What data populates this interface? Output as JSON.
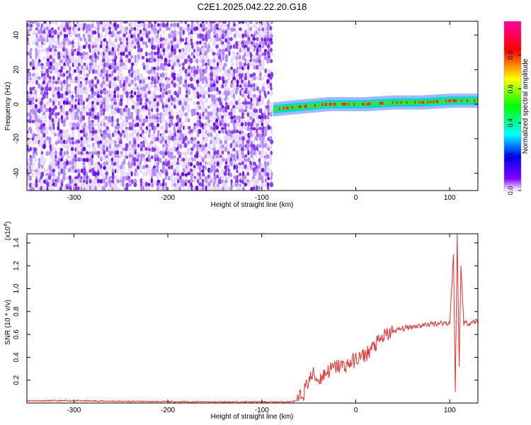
{
  "title": "C2E1.2025.042.22.20.G18",
  "chart_data": [
    {
      "type": "heatmap",
      "title": "C2E1.2025.042.22.20.G18",
      "xlabel": "Height of straight line (km)",
      "ylabel": "Frequency (Hz)",
      "xlim": [
        -350,
        130
      ],
      "ylim": [
        -50,
        48
      ],
      "xticks": [
        -300,
        -200,
        -100,
        0,
        100
      ],
      "yticks": [
        -40,
        -20,
        0,
        20,
        40
      ],
      "xtick_labels": [
        "-300",
        "-200",
        "-100",
        "0",
        "100"
      ],
      "ytick_labels": [
        "-40",
        "-20",
        "0",
        "20",
        "40"
      ],
      "colorbar": {
        "label": "Normalized spectral amplitude",
        "range": [
          0,
          1
        ],
        "ticks": [
          0.0,
          0.2,
          0.4,
          0.6,
          0.8
        ],
        "tick_labels": [
          "0.0",
          "0.2",
          "0.4",
          "0.6",
          "0.8"
        ],
        "colors": [
          "#ffffff",
          "#8000ff",
          "#0000ff",
          "#00ffff",
          "#00ff00",
          "#ffff00",
          "#ff0000",
          "#ff00a0"
        ]
      },
      "noise_region": {
        "x_range": [
          -350,
          -88
        ],
        "y_range": [
          -50,
          48
        ],
        "amplitude": [
          0.05,
          0.2
        ]
      },
      "signal_track": {
        "x_range": [
          -88,
          130
        ],
        "center_frequency": [
          -3,
          -2,
          -1,
          0,
          0,
          0,
          1,
          1,
          2,
          2
        ],
        "x_samples": [
          -88,
          -70,
          -50,
          -30,
          -10,
          10,
          40,
          70,
          100,
          130
        ]
      }
    },
    {
      "type": "line",
      "xlabel": "Height of straight line (km)",
      "ylabel": "SNR (10 * v/v)",
      "y_multiplier_label": "(x10",
      "y_multiplier_exp": "4",
      "xlim": [
        -350,
        130
      ],
      "ylim": [
        0,
        1.48
      ],
      "xticks": [
        -300,
        -200,
        -100,
        0,
        100
      ],
      "yticks": [
        0.2,
        0.4,
        0.6,
        0.8,
        1.0,
        1.2,
        1.4
      ],
      "xtick_labels": [
        "-300",
        "-200",
        "-100",
        "0",
        "100"
      ],
      "ytick_labels": [
        "0.2",
        "0.4",
        "0.6",
        "0.8",
        "1.0",
        "1.2",
        "1.4"
      ],
      "color": "#e83030",
      "series": [
        {
          "x": [
            -350,
            -300,
            -250,
            -200,
            -150,
            -100,
            -70,
            -62,
            -55,
            -50,
            -45,
            -40,
            -30,
            -20,
            -10,
            0,
            10,
            20,
            30,
            40,
            50,
            60,
            70,
            80,
            90,
            95,
            100,
            104,
            106,
            108,
            110,
            112,
            115,
            120,
            130
          ],
          "y": [
            0.02,
            0.02,
            0.015,
            0.012,
            0.01,
            0.01,
            0.01,
            0.02,
            0.1,
            0.2,
            0.25,
            0.2,
            0.28,
            0.32,
            0.33,
            0.38,
            0.42,
            0.5,
            0.58,
            0.63,
            0.65,
            0.67,
            0.68,
            0.69,
            0.7,
            0.7,
            0.7,
            1.3,
            0.08,
            1.48,
            0.3,
            1.2,
            0.7,
            0.7,
            0.72
          ]
        }
      ]
    }
  ]
}
